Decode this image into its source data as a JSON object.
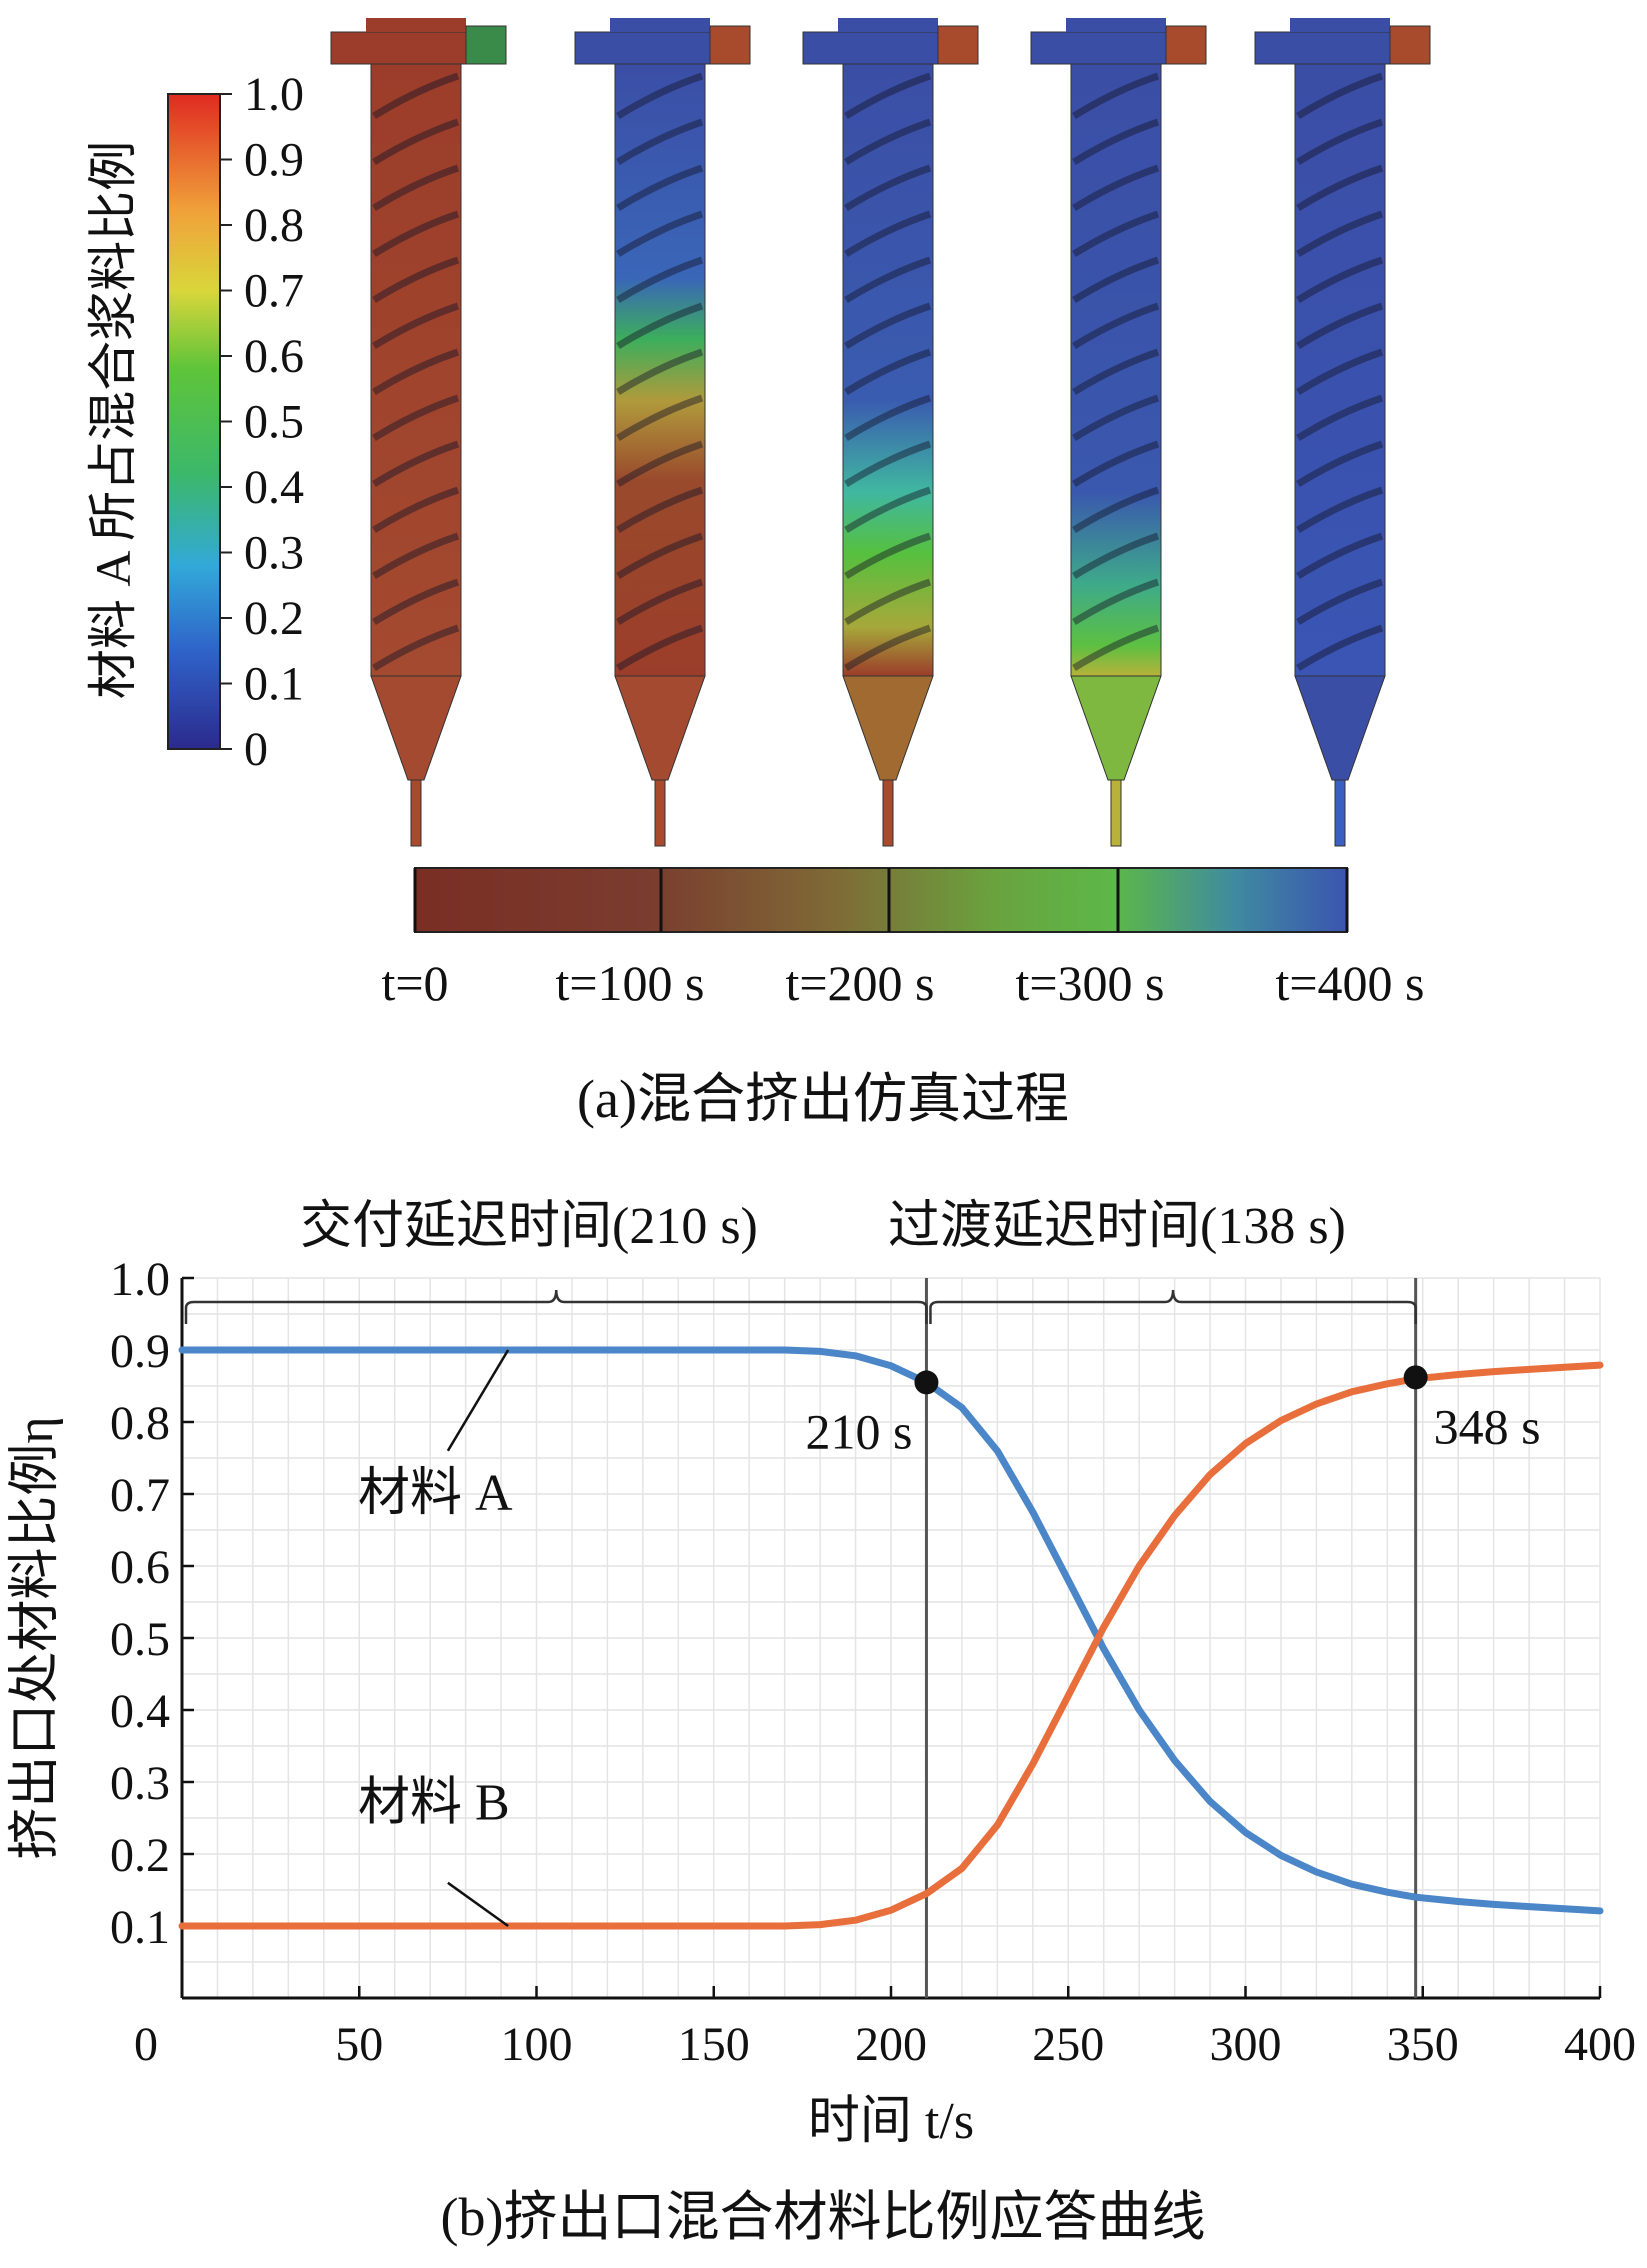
{
  "panel_a": {
    "caption": "(a)混合挤出仿真过程",
    "colorbar": {
      "title": "材料 A 所占混合浆料比例",
      "ticks": [
        "1.0",
        "0.9",
        "0.8",
        "0.7",
        "0.6",
        "0.5",
        "0.4",
        "0.3",
        "0.2",
        "0.1",
        "0"
      ]
    },
    "timeline_labels": [
      "t=0",
      "t=100 s",
      "t=200 s",
      "t=300 s",
      "t=400 s"
    ],
    "extruder_states": [
      {
        "time": "t=0",
        "body": "#9b3d2a",
        "nozzle": "#a84a2c"
      },
      {
        "time": "t=100 s",
        "body": "#3b4ea6",
        "nozzle": "#a84a2c"
      },
      {
        "time": "t=200 s",
        "body": "#3b4ea6",
        "nozzle": "#a84a2c"
      },
      {
        "time": "t=300 s",
        "body": "#3b4ea6",
        "nozzle": "#b8b23a"
      },
      {
        "time": "t=400 s",
        "body": "#3b4ea6",
        "nozzle": "#3a5fc0"
      }
    ]
  },
  "panel_b": {
    "caption": "(b)挤出口混合材料比例应答曲线",
    "bracket_labels": [
      "交付延迟时间(210 s)",
      "过渡延迟时间(138 s)"
    ],
    "series_labels": [
      "材料 A",
      "材料 B"
    ],
    "marker_labels": [
      "210 s",
      "348 s"
    ]
  },
  "chart_data": {
    "type": "line",
    "xlabel": "时间 t/s",
    "ylabel": "挤出口处材料比例η",
    "xlim": [
      0,
      400
    ],
    "ylim": [
      0,
      1.0
    ],
    "x_ticks": [
      0,
      50,
      100,
      150,
      200,
      250,
      300,
      350,
      400
    ],
    "y_ticks": [
      "0.1",
      "0.2",
      "0.3",
      "0.4",
      "0.5",
      "0.6",
      "0.7",
      "0.8",
      "0.9",
      "1.0"
    ],
    "grid": true,
    "x": [
      0,
      20,
      40,
      60,
      80,
      100,
      120,
      140,
      160,
      170,
      180,
      190,
      200,
      210,
      220,
      230,
      240,
      250,
      260,
      270,
      280,
      290,
      300,
      310,
      320,
      330,
      340,
      348,
      360,
      370,
      380,
      390,
      400
    ],
    "series": [
      {
        "name": "材料 A",
        "color": "#4a86c8",
        "values": [
          0.9,
          0.9,
          0.9,
          0.9,
          0.9,
          0.9,
          0.9,
          0.9,
          0.9,
          0.9,
          0.898,
          0.892,
          0.878,
          0.855,
          0.82,
          0.76,
          0.675,
          0.58,
          0.485,
          0.4,
          0.33,
          0.273,
          0.23,
          0.198,
          0.175,
          0.158,
          0.147,
          0.14,
          0.134,
          0.13,
          0.127,
          0.124,
          0.121
        ]
      },
      {
        "name": "材料 B",
        "color": "#e86e3c",
        "values": [
          0.1,
          0.1,
          0.1,
          0.1,
          0.1,
          0.1,
          0.1,
          0.1,
          0.1,
          0.1,
          0.102,
          0.108,
          0.122,
          0.145,
          0.18,
          0.24,
          0.325,
          0.42,
          0.515,
          0.6,
          0.67,
          0.727,
          0.77,
          0.802,
          0.825,
          0.842,
          0.853,
          0.86,
          0.866,
          0.87,
          0.873,
          0.876,
          0.879
        ]
      }
    ],
    "markers": [
      {
        "x": 210,
        "y": 0.855,
        "label": "210 s"
      },
      {
        "x": 348,
        "y": 0.862,
        "label": "348 s"
      }
    ],
    "vlines": [
      210,
      348
    ]
  }
}
